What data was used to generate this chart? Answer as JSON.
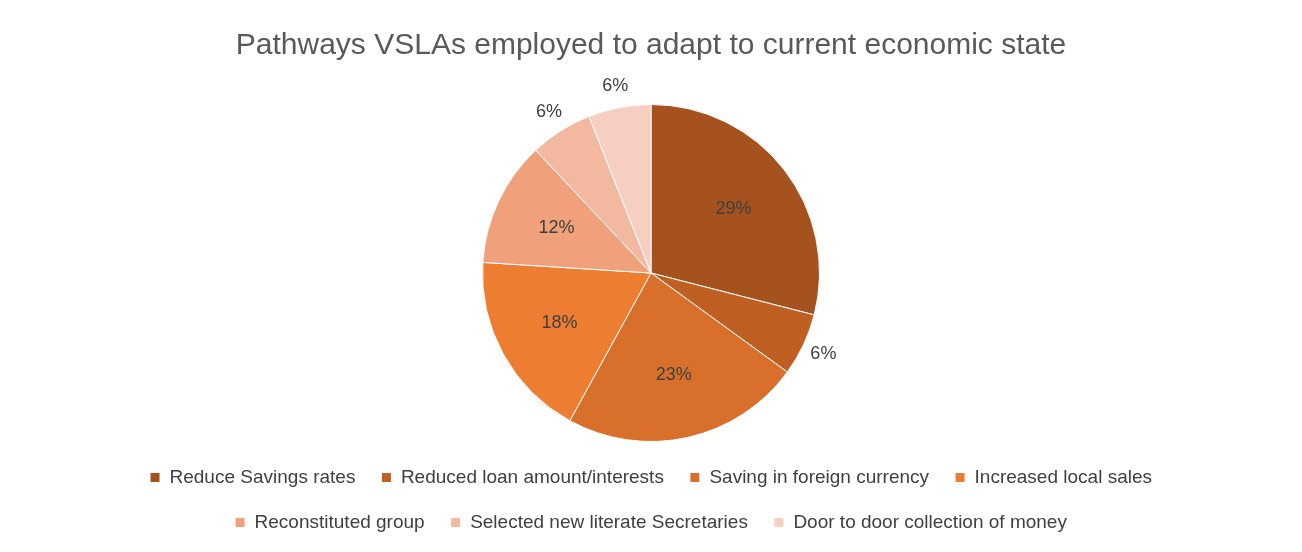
{
  "chart_data": {
    "type": "pie",
    "title": "Pathways VSLAs employed to adapt to current economic state",
    "categories": [
      "Reduce Savings rates",
      "Reduced loan amount/interests",
      "Saving in foreign currency",
      "Increased local sales",
      "Reconstituted group",
      "Selected new literate Secretaries",
      "Door to door collection of money"
    ],
    "values": [
      29,
      6,
      23,
      18,
      12,
      6,
      6
    ],
    "value_labels": [
      "29%",
      "6%",
      "23%",
      "18%",
      "12%",
      "6%",
      "6%"
    ],
    "colors": [
      "#a5521e",
      "#c05f22",
      "#d8702b",
      "#ed7d31",
      "#f0a07a",
      "#f3b9a0",
      "#f6cfc2"
    ],
    "legend": "bottom"
  }
}
